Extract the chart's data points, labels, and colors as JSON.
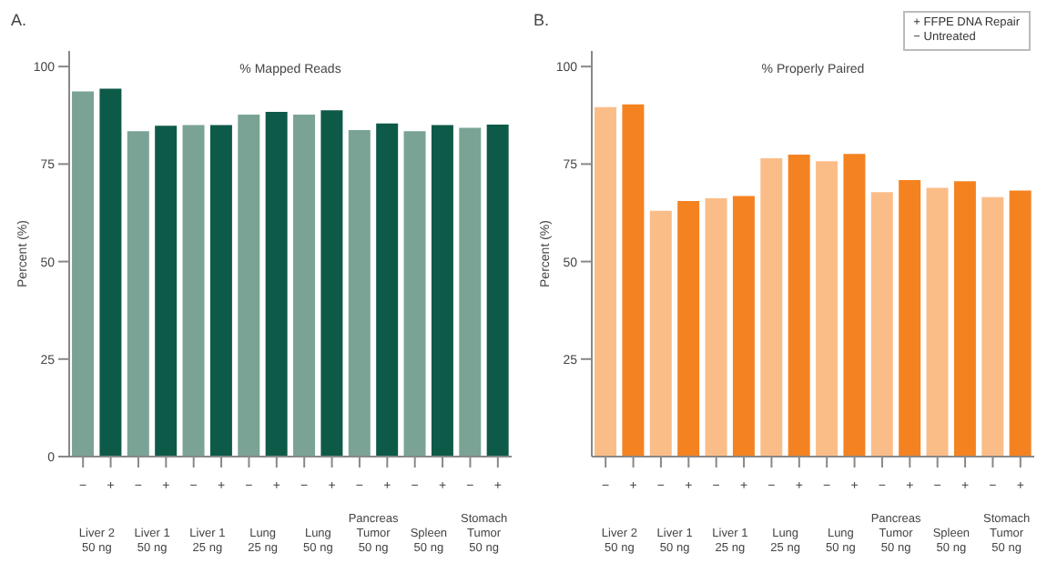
{
  "chart_data": [
    {
      "type": "bar",
      "title": "A.",
      "subtitle": "% Mapped Reads",
      "ylabel": "Percent (%)",
      "categories": [
        "−",
        "+",
        "−",
        "+",
        "−",
        "+",
        "−",
        "+",
        "−",
        "+",
        "−",
        "+",
        "−",
        "+",
        "−",
        "+"
      ],
      "values": [
        93.6,
        94.3,
        83.4,
        84.8,
        85.0,
        85.0,
        87.7,
        88.4,
        87.7,
        88.8,
        83.7,
        85.4,
        83.4,
        85.0,
        84.3,
        85.1
      ],
      "colors": [
        "#7aa396",
        "#0e5a48",
        "#7aa396",
        "#0e5a48",
        "#7aa396",
        "#0e5a48",
        "#7aa396",
        "#0e5a48",
        "#7aa396",
        "#0e5a48",
        "#7aa396",
        "#0e5a48",
        "#7aa396",
        "#0e5a48",
        "#7aa396",
        "#0e5a48"
      ],
      "annotations": [
        "Liver 2\n50 ng",
        "Liver 1\n50 ng",
        "Liver 1\n25 ng",
        "Lung\n25 ng",
        "Lung\n50 ng",
        "Pancreas\nTumor\n50 ng",
        "Spleen\n50 ng",
        "Stomach\nTumor\n50 ng"
      ],
      "ylim": [
        0,
        104
      ],
      "yticks": [
        0,
        25,
        50,
        75,
        100
      ],
      "grid": false
    },
    {
      "type": "bar",
      "title": "B.",
      "subtitle": "% Properly Paired",
      "ylabel": "Percent (%)",
      "categories": [
        "−",
        "+",
        "−",
        "+",
        "−",
        "+",
        "−",
        "+",
        "−",
        "+",
        "−",
        "+",
        "−",
        "+",
        "−",
        "+"
      ],
      "values": [
        89.6,
        90.3,
        63.0,
        65.5,
        66.2,
        66.8,
        76.5,
        77.4,
        75.7,
        77.6,
        67.8,
        70.9,
        68.9,
        70.6,
        66.5,
        68.2
      ],
      "colors": [
        "#fbbd88",
        "#f58220",
        "#fbbd88",
        "#f58220",
        "#fbbd88",
        "#f58220",
        "#fbbd88",
        "#f58220",
        "#fbbd88",
        "#f58220",
        "#fbbd88",
        "#f58220",
        "#fbbd88",
        "#f58220",
        "#fbbd88",
        "#f58220"
      ],
      "annotations": [
        "Liver 2\n50 ng",
        "Liver 1\n50 ng",
        "Liver 1\n25 ng",
        "Lung\n25 ng",
        "Lung\n50 ng",
        "Pancreas\nTumor\n50 ng",
        "Spleen\n50 ng",
        "Stomach\nTumor\n50 ng"
      ],
      "legend_title": "+ FFPE DNA Repair\n− Untreated",
      "ylim": [
        0,
        104
      ],
      "yticks": [
        25,
        50,
        75,
        100
      ],
      "grid": false
    }
  ]
}
